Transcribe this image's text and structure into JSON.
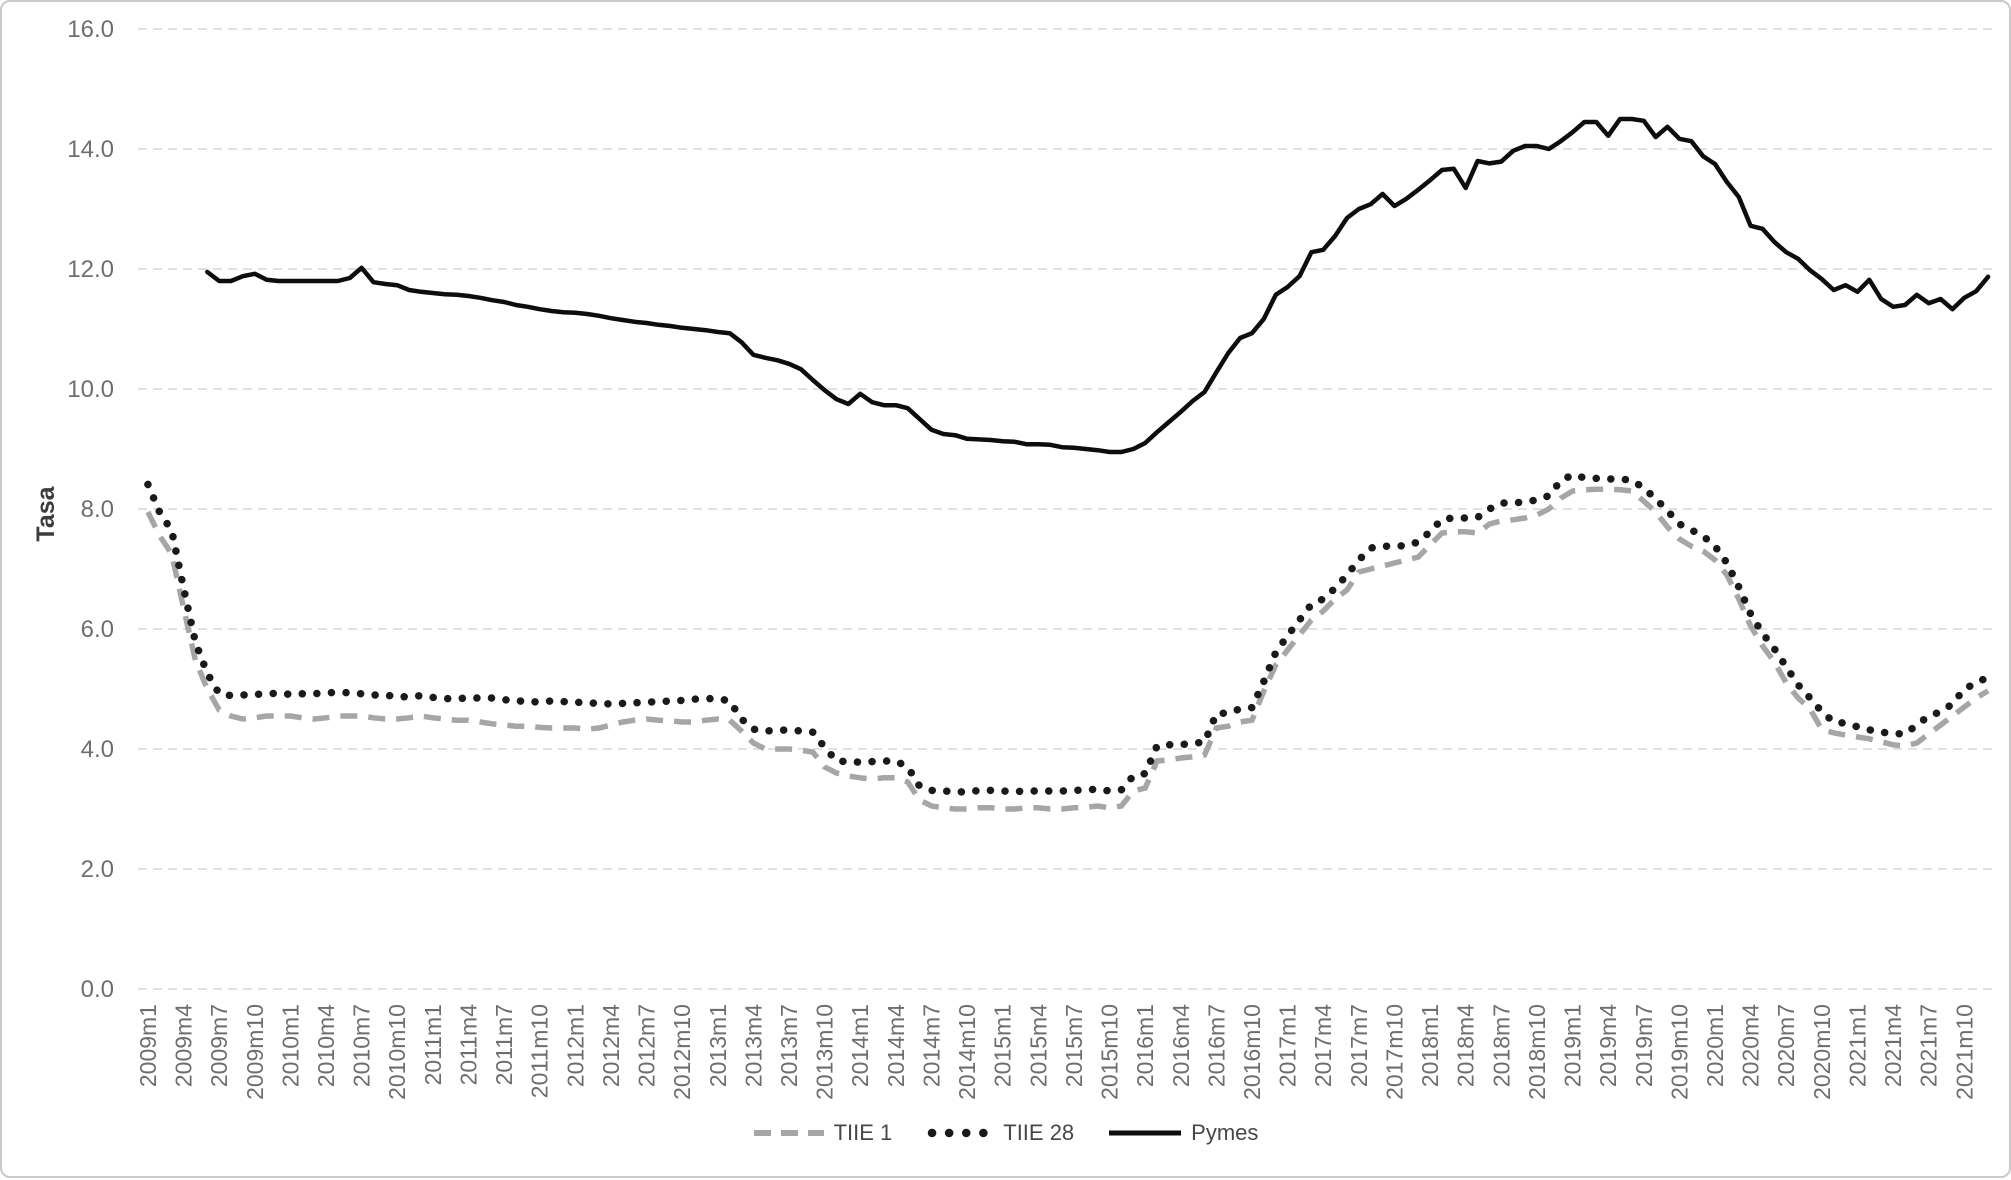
{
  "chart_data": {
    "type": "line",
    "title": "",
    "xlabel": "",
    "ylabel": "Tasa",
    "ylim": [
      0,
      16
    ],
    "y_ticks": [
      0,
      2,
      4,
      6,
      8,
      10,
      12,
      14,
      16
    ],
    "x_tick_every": 3,
    "grid": true,
    "legend_position": "bottom",
    "colors": {
      "grid": "#d7d7d7",
      "tick": "#6e6e6e",
      "axis_title": "#3c3c3c",
      "border": "#c9c9c9"
    },
    "categories": [
      "2009m1",
      "2009m2",
      "2009m3",
      "2009m4",
      "2009m5",
      "2009m6",
      "2009m7",
      "2009m8",
      "2009m9",
      "2009m10",
      "2009m11",
      "2009m12",
      "2010m1",
      "2010m2",
      "2010m3",
      "2010m4",
      "2010m5",
      "2010m6",
      "2010m7",
      "2010m8",
      "2010m9",
      "2010m10",
      "2010m11",
      "2010m12",
      "2011m1",
      "2011m2",
      "2011m3",
      "2011m4",
      "2011m5",
      "2011m6",
      "2011m7",
      "2011m8",
      "2011m9",
      "2011m10",
      "2011m11",
      "2011m12",
      "2012m1",
      "2012m2",
      "2012m3",
      "2012m4",
      "2012m5",
      "2012m6",
      "2012m7",
      "2012m8",
      "2012m9",
      "2012m10",
      "2012m11",
      "2012m12",
      "2013m1",
      "2013m2",
      "2013m3",
      "2013m4",
      "2013m5",
      "2013m6",
      "2013m7",
      "2013m8",
      "2013m9",
      "2013m10",
      "2013m11",
      "2013m12",
      "2014m1",
      "2014m2",
      "2014m3",
      "2014m4",
      "2014m5",
      "2014m6",
      "2014m7",
      "2014m8",
      "2014m9",
      "2014m10",
      "2014m11",
      "2014m12",
      "2015m1",
      "2015m2",
      "2015m3",
      "2015m4",
      "2015m5",
      "2015m6",
      "2015m7",
      "2015m8",
      "2015m9",
      "2015m10",
      "2015m11",
      "2015m12",
      "2016m1",
      "2016m2",
      "2016m3",
      "2016m4",
      "2016m5",
      "2016m6",
      "2016m7",
      "2016m8",
      "2016m9",
      "2016m10",
      "2016m11",
      "2016m12",
      "2017m1",
      "2017m2",
      "2017m3",
      "2017m4",
      "2017m5",
      "2017m6",
      "2017m7",
      "2017m8",
      "2017m9",
      "2017m10",
      "2017m11",
      "2017m12",
      "2018m1",
      "2018m2",
      "2018m3",
      "2018m4",
      "2018m5",
      "2018m6",
      "2018m7",
      "2018m8",
      "2018m9",
      "2018m10",
      "2018m11",
      "2018m12",
      "2019m1",
      "2019m2",
      "2019m3",
      "2019m4",
      "2019m5",
      "2019m6",
      "2019m7",
      "2019m8",
      "2019m9",
      "2019m10",
      "2019m11",
      "2019m12",
      "2020m1",
      "2020m2",
      "2020m3",
      "2020m4",
      "2020m5",
      "2020m6",
      "2020m7",
      "2020m8",
      "2020m9",
      "2020m10",
      "2020m11",
      "2020m12",
      "2021m1",
      "2021m2",
      "2021m3",
      "2021m4",
      "2021m5",
      "2021m6",
      "2021m7",
      "2021m8",
      "2021m9",
      "2021m10",
      "2021m11",
      "2021m12"
    ],
    "series": [
      {
        "id": "tiie-1",
        "name": "TIIE 1",
        "color": "#a6a6a6",
        "style": "dashed",
        "width": 5.5,
        "values": [
          7.95,
          7.55,
          7.25,
          6.35,
          5.48,
          5.0,
          4.65,
          4.55,
          4.5,
          4.52,
          4.55,
          4.55,
          4.55,
          4.52,
          4.5,
          4.52,
          4.55,
          4.55,
          4.55,
          4.52,
          4.5,
          4.5,
          4.52,
          4.55,
          4.52,
          4.5,
          4.48,
          4.48,
          4.45,
          4.42,
          4.4,
          4.38,
          4.38,
          4.36,
          4.35,
          4.35,
          4.35,
          4.33,
          4.35,
          4.4,
          4.45,
          4.48,
          4.5,
          4.48,
          4.47,
          4.45,
          4.45,
          4.48,
          4.5,
          4.48,
          4.3,
          4.1,
          4.0,
          4.0,
          4.0,
          3.98,
          3.95,
          3.7,
          3.6,
          3.55,
          3.52,
          3.5,
          3.52,
          3.52,
          3.45,
          3.15,
          3.05,
          3.02,
          3.0,
          3.0,
          3.02,
          3.02,
          3.0,
          3.0,
          3.02,
          3.02,
          3.0,
          3.0,
          3.02,
          3.03,
          3.05,
          3.02,
          3.05,
          3.3,
          3.35,
          3.8,
          3.82,
          3.85,
          3.87,
          3.9,
          4.35,
          4.38,
          4.45,
          4.48,
          4.97,
          5.4,
          5.65,
          5.9,
          6.15,
          6.3,
          6.5,
          6.65,
          6.95,
          7.0,
          7.05,
          7.1,
          7.15,
          7.2,
          7.4,
          7.6,
          7.62,
          7.62,
          7.6,
          7.75,
          7.8,
          7.82,
          7.85,
          7.9,
          8.0,
          8.18,
          8.3,
          8.32,
          8.33,
          8.33,
          8.32,
          8.3,
          8.13,
          7.95,
          7.7,
          7.5,
          7.38,
          7.3,
          7.15,
          6.9,
          6.5,
          6.05,
          5.72,
          5.45,
          5.1,
          4.85,
          4.67,
          4.32,
          4.27,
          4.23,
          4.2,
          4.17,
          4.12,
          4.07,
          4.05,
          4.1,
          4.25,
          4.4,
          4.55,
          4.7,
          4.85,
          4.97
        ]
      },
      {
        "id": "tiie-28",
        "name": "TIIE 28",
        "color": "#1a1a1a",
        "style": "dotted",
        "width": 7.5,
        "values": [
          8.41,
          7.94,
          7.64,
          6.68,
          5.78,
          5.26,
          4.92,
          4.89,
          4.9,
          4.91,
          4.92,
          4.93,
          4.91,
          4.92,
          4.92,
          4.94,
          4.94,
          4.94,
          4.92,
          4.9,
          4.9,
          4.87,
          4.87,
          4.89,
          4.86,
          4.84,
          4.84,
          4.85,
          4.85,
          4.85,
          4.82,
          4.81,
          4.78,
          4.79,
          4.8,
          4.79,
          4.78,
          4.77,
          4.76,
          4.75,
          4.76,
          4.77,
          4.78,
          4.79,
          4.8,
          4.81,
          4.83,
          4.84,
          4.84,
          4.8,
          4.5,
          4.33,
          4.3,
          4.31,
          4.32,
          4.3,
          4.28,
          4.03,
          3.8,
          3.79,
          3.78,
          3.79,
          3.8,
          3.8,
          3.7,
          3.38,
          3.31,
          3.3,
          3.29,
          3.28,
          3.31,
          3.31,
          3.3,
          3.29,
          3.3,
          3.3,
          3.3,
          3.3,
          3.31,
          3.32,
          3.33,
          3.3,
          3.32,
          3.55,
          3.59,
          4.05,
          4.07,
          4.07,
          4.1,
          4.11,
          4.59,
          4.6,
          4.67,
          4.69,
          5.13,
          5.61,
          5.89,
          6.15,
          6.41,
          6.5,
          6.68,
          6.9,
          7.15,
          7.35,
          7.38,
          7.38,
          7.39,
          7.45,
          7.62,
          7.83,
          7.85,
          7.85,
          7.86,
          8.0,
          8.1,
          8.1,
          8.12,
          8.15,
          8.22,
          8.47,
          8.57,
          8.52,
          8.51,
          8.5,
          8.5,
          8.48,
          8.35,
          8.17,
          7.97,
          7.75,
          7.65,
          7.55,
          7.38,
          7.1,
          6.7,
          6.25,
          5.93,
          5.67,
          5.37,
          5.07,
          4.85,
          4.62,
          4.45,
          4.43,
          4.37,
          4.32,
          4.28,
          4.26,
          4.25,
          4.4,
          4.55,
          4.62,
          4.75,
          5.0,
          5.1,
          5.2
        ]
      },
      {
        "id": "pymes",
        "name": "Pymes",
        "color": "#0d0d0d",
        "style": "solid",
        "width": 4.5,
        "values": [
          null,
          null,
          null,
          null,
          null,
          11.95,
          11.8,
          11.8,
          11.88,
          11.92,
          11.82,
          11.8,
          11.8,
          11.8,
          11.8,
          11.8,
          11.8,
          11.85,
          12.02,
          11.78,
          11.75,
          11.73,
          11.65,
          11.62,
          11.6,
          11.58,
          11.57,
          11.55,
          11.52,
          11.48,
          11.45,
          11.4,
          11.37,
          11.33,
          11.3,
          11.28,
          11.27,
          11.25,
          11.22,
          11.18,
          11.15,
          11.12,
          11.1,
          11.07,
          11.05,
          11.02,
          11.0,
          10.98,
          10.95,
          10.93,
          10.78,
          10.57,
          10.52,
          10.48,
          10.42,
          10.33,
          10.15,
          9.98,
          9.83,
          9.75,
          9.92,
          9.78,
          9.73,
          9.73,
          9.68,
          9.5,
          9.32,
          9.25,
          9.23,
          9.17,
          9.16,
          9.15,
          9.13,
          9.12,
          9.08,
          9.08,
          9.07,
          9.03,
          9.02,
          9.0,
          8.98,
          8.95,
          8.95,
          9.0,
          9.1,
          9.28,
          9.45,
          9.62,
          9.8,
          9.95,
          10.28,
          10.6,
          10.85,
          10.93,
          11.17,
          11.57,
          11.7,
          11.88,
          12.28,
          12.32,
          12.55,
          12.85,
          13.0,
          13.08,
          13.25,
          13.05,
          13.17,
          13.32,
          13.48,
          13.65,
          13.67,
          13.35,
          13.8,
          13.76,
          13.79,
          13.97,
          14.05,
          14.05,
          14.0,
          14.13,
          14.28,
          14.45,
          14.45,
          14.22,
          14.5,
          14.5,
          14.47,
          14.2,
          14.37,
          14.17,
          14.13,
          13.88,
          13.75,
          13.45,
          13.2,
          12.72,
          12.67,
          12.45,
          12.28,
          12.17,
          11.98,
          11.83,
          11.65,
          11.73,
          11.62,
          11.82,
          11.5,
          11.37,
          11.4,
          11.57,
          11.43,
          11.5,
          11.33,
          11.52,
          11.63,
          11.87
        ]
      }
    ]
  }
}
